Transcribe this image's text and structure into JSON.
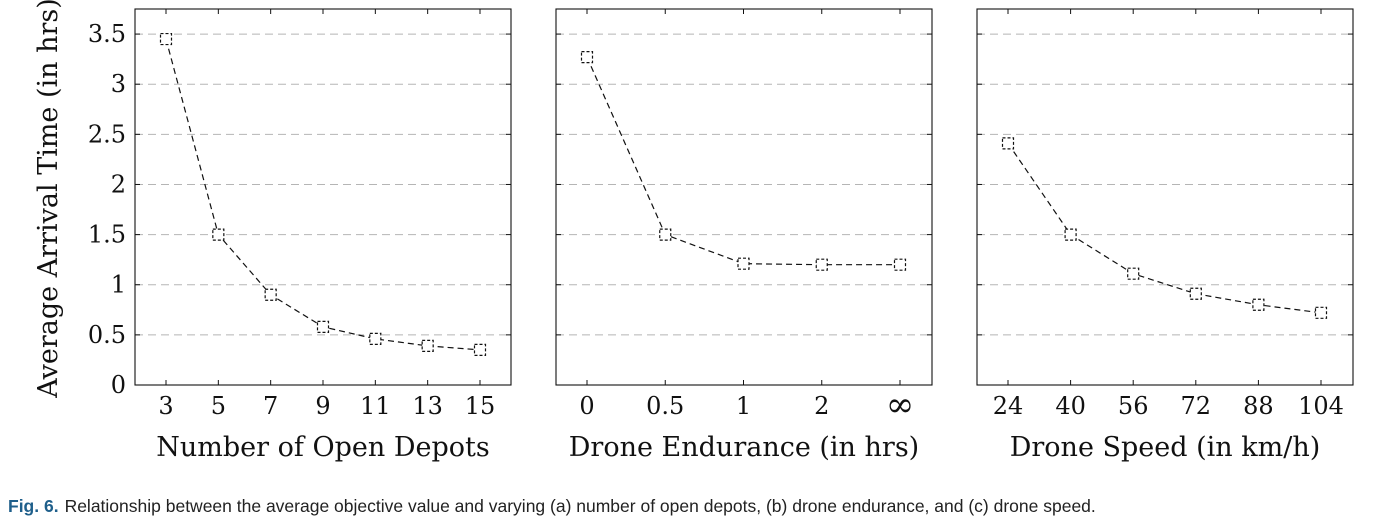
{
  "y_axis_label": "Average Arrival Time (in hrs)",
  "caption": {
    "label": "Fig. 6.",
    "text": "Relationship between the average objective value and varying (a) number of open depots, (b) drone endurance, and (c) drone speed."
  },
  "chart_data": [
    {
      "type": "line",
      "xlabel": "Number of Open Depots",
      "ylabel": "Average Arrival Time (in hrs)",
      "categories": [
        "3",
        "5",
        "7",
        "9",
        "11",
        "13",
        "15"
      ],
      "values": [
        3.45,
        1.5,
        0.9,
        0.58,
        0.46,
        0.39,
        0.35
      ],
      "ylim": [
        0,
        3.75
      ],
      "yticks": [
        0,
        0.5,
        1,
        1.5,
        2,
        2.5,
        3,
        3.5
      ],
      "grid": "horizontal dashed",
      "marker": "square",
      "line_style": "dashed"
    },
    {
      "type": "line",
      "xlabel": "Drone Endurance (in hrs)",
      "ylabel": "",
      "categories": [
        "0",
        "0.5",
        "1",
        "2",
        "∞"
      ],
      "values": [
        3.27,
        1.5,
        1.21,
        1.2,
        1.2
      ],
      "ylim": [
        0,
        3.75
      ],
      "yticks": [
        0,
        0.5,
        1,
        1.5,
        2,
        2.5,
        3,
        3.5
      ],
      "grid": "horizontal dashed",
      "marker": "square",
      "line_style": "dashed"
    },
    {
      "type": "line",
      "xlabel": "Drone Speed (in km/h)",
      "ylabel": "",
      "categories": [
        "24",
        "40",
        "56",
        "72",
        "88",
        "104"
      ],
      "values": [
        2.41,
        1.5,
        1.11,
        0.91,
        0.8,
        0.72
      ],
      "ylim": [
        0,
        3.75
      ],
      "yticks": [
        0,
        0.5,
        1,
        1.5,
        2,
        2.5,
        3,
        3.5
      ],
      "grid": "horizontal dashed",
      "marker": "square",
      "line_style": "dashed"
    }
  ]
}
